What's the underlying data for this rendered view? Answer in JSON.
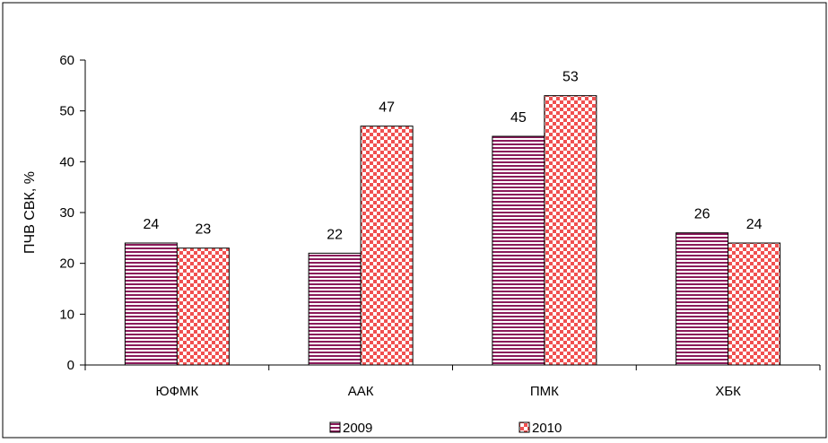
{
  "chart_data": {
    "type": "bar",
    "categories": [
      "ЮФМК",
      "ААК",
      "ПМК",
      "ХБК"
    ],
    "series": [
      {
        "name": "2009",
        "values": [
          24,
          22,
          45,
          26
        ],
        "color": "#8b1a5a",
        "fill": "#ffffff",
        "pattern": "horizontal-stripes"
      },
      {
        "name": "2010",
        "values": [
          23,
          47,
          53,
          24
        ],
        "color": "#f05050",
        "fill": "#ffffff",
        "pattern": "checkerboard"
      }
    ],
    "ylabel": "ПЧВ СВК, %",
    "xlabel": "",
    "ylim": [
      0,
      60
    ],
    "yticks": [
      0,
      10,
      20,
      30,
      40,
      50,
      60
    ],
    "grid": false,
    "legend_position": "bottom-center",
    "data_labels": true
  }
}
